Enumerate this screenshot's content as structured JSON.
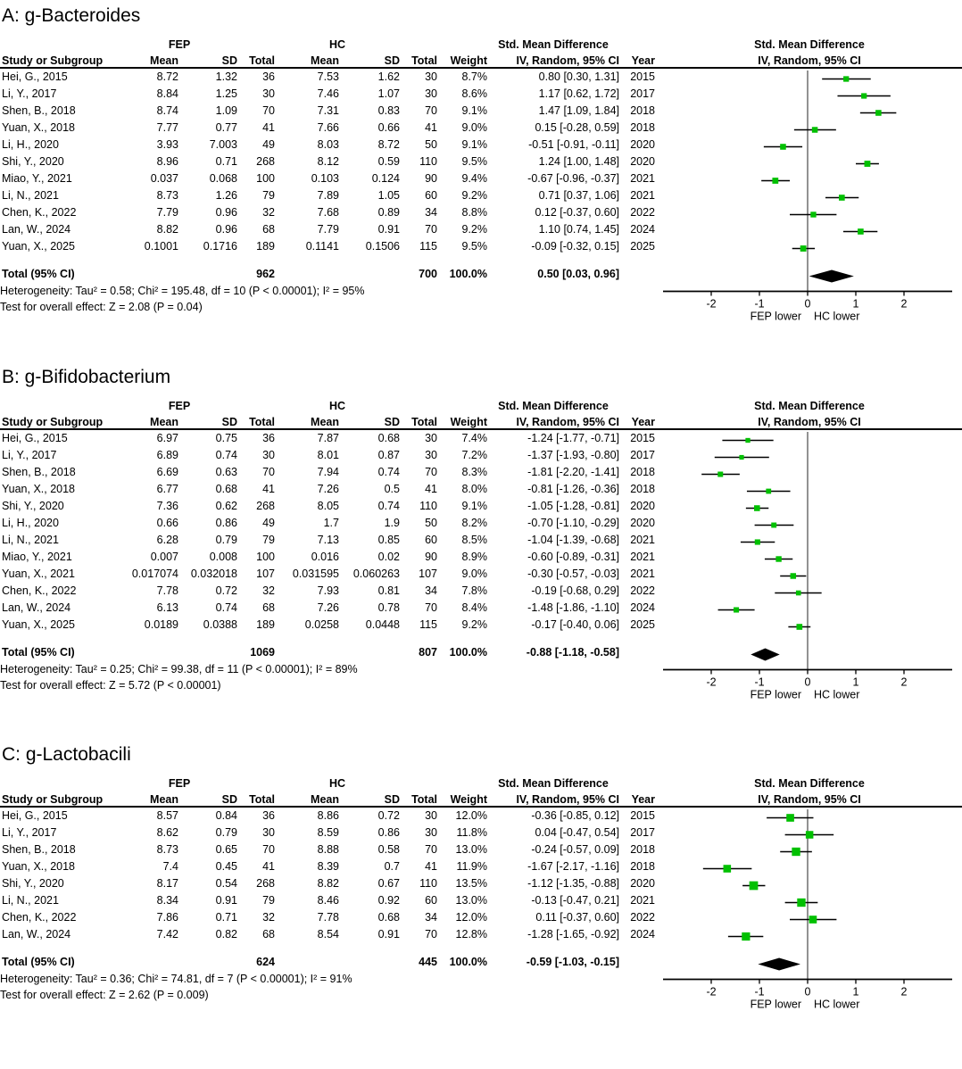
{
  "headers": {
    "fep": "FEP",
    "hc": "HC",
    "smd": "Std. Mean Difference",
    "study": "Study or Subgroup",
    "mean": "Mean",
    "sd": "SD",
    "total": "Total",
    "weight": "Weight",
    "iv_ci": "IV, Random, 95% CI",
    "year": "Year"
  },
  "colors": {
    "marker_green": "#00c000",
    "diamond_black": "#000000",
    "line_black": "#000000",
    "zero_line": "#3a3a3a"
  },
  "panels": [
    {
      "title": "A: g-Bacteroides",
      "rows": [
        [
          "Hei, G., 2015",
          "8.72",
          "1.32",
          "36",
          "7.53",
          "1.62",
          "30",
          "8.7%",
          "0.80 [0.30, 1.31]",
          "2015"
        ],
        [
          "Li, Y., 2017",
          "8.84",
          "1.25",
          "30",
          "7.46",
          "1.07",
          "30",
          "8.6%",
          "1.17 [0.62, 1.72]",
          "2017"
        ],
        [
          "Shen, B., 2018",
          "8.74",
          "1.09",
          "70",
          "7.31",
          "0.83",
          "70",
          "9.1%",
          "1.47 [1.09, 1.84]",
          "2018"
        ],
        [
          "Yuan, X., 2018",
          "7.77",
          "0.77",
          "41",
          "7.66",
          "0.66",
          "41",
          "9.0%",
          "0.15 [-0.28, 0.59]",
          "2018"
        ],
        [
          "Li, H., 2020",
          "3.93",
          "7.003",
          "49",
          "8.03",
          "8.72",
          "50",
          "9.1%",
          "-0.51 [-0.91, -0.11]",
          "2020"
        ],
        [
          "Shi, Y., 2020",
          "8.96",
          "0.71",
          "268",
          "8.12",
          "0.59",
          "110",
          "9.5%",
          "1.24 [1.00, 1.48]",
          "2020"
        ],
        [
          "Miao, Y., 2021",
          "0.037",
          "0.068",
          "100",
          "0.103",
          "0.124",
          "90",
          "9.4%",
          "-0.67 [-0.96, -0.37]",
          "2021"
        ],
        [
          "Li, N., 2021",
          "8.73",
          "1.26",
          "79",
          "7.89",
          "1.05",
          "60",
          "9.2%",
          "0.71 [0.37, 1.06]",
          "2021"
        ],
        [
          "Chen, K., 2022",
          "7.79",
          "0.96",
          "32",
          "7.68",
          "0.89",
          "34",
          "8.8%",
          "0.12 [-0.37, 0.60]",
          "2022"
        ],
        [
          "Lan, W., 2024",
          "8.82",
          "0.96",
          "68",
          "7.79",
          "0.91",
          "70",
          "9.2%",
          "1.10 [0.74, 1.45]",
          "2024"
        ],
        [
          "Yuan, X., 2025",
          "0.1001",
          "0.1716",
          "189",
          "0.1141",
          "0.1506",
          "115",
          "9.5%",
          "-0.09 [-0.32, 0.15]",
          "2025"
        ]
      ],
      "total": {
        "label": "Total (95% CI)",
        "n1": "962",
        "n2": "700",
        "weight": "100.0%",
        "ci": "0.50 [0.03, 0.96]"
      },
      "heterogeneity": "Heterogeneity: Tau² = 0.58; Chi² = 195.48, df = 10 (P < 0.00001); I² = 95%",
      "overall_effect": "Test for overall effect: Z = 2.08 (P = 0.04)"
    },
    {
      "title": "B: g-Bifidobacterium",
      "rows": [
        [
          "Hei, G., 2015",
          "6.97",
          "0.75",
          "36",
          "7.87",
          "0.68",
          "30",
          "7.4%",
          "-1.24 [-1.77, -0.71]",
          "2015"
        ],
        [
          "Li, Y., 2017",
          "6.89",
          "0.74",
          "30",
          "8.01",
          "0.87",
          "30",
          "7.2%",
          "-1.37 [-1.93, -0.80]",
          "2017"
        ],
        [
          "Shen, B., 2018",
          "6.69",
          "0.63",
          "70",
          "7.94",
          "0.74",
          "70",
          "8.3%",
          "-1.81 [-2.20, -1.41]",
          "2018"
        ],
        [
          "Yuan, X., 2018",
          "6.77",
          "0.68",
          "41",
          "7.26",
          "0.5",
          "41",
          "8.0%",
          "-0.81 [-1.26, -0.36]",
          "2018"
        ],
        [
          "Shi, Y., 2020",
          "7.36",
          "0.62",
          "268",
          "8.05",
          "0.74",
          "110",
          "9.1%",
          "-1.05 [-1.28, -0.81]",
          "2020"
        ],
        [
          "Li, H., 2020",
          "0.66",
          "0.86",
          "49",
          "1.7",
          "1.9",
          "50",
          "8.2%",
          "-0.70 [-1.10, -0.29]",
          "2020"
        ],
        [
          "Li, N., 2021",
          "6.28",
          "0.79",
          "79",
          "7.13",
          "0.85",
          "60",
          "8.5%",
          "-1.04 [-1.39, -0.68]",
          "2021"
        ],
        [
          "Miao, Y., 2021",
          "0.007",
          "0.008",
          "100",
          "0.016",
          "0.02",
          "90",
          "8.9%",
          "-0.60 [-0.89, -0.31]",
          "2021"
        ],
        [
          "Yuan, X., 2021",
          "0.017074",
          "0.032018",
          "107",
          "0.031595",
          "0.060263",
          "107",
          "9.0%",
          "-0.30 [-0.57, -0.03]",
          "2021"
        ],
        [
          "Chen, K., 2022",
          "7.78",
          "0.72",
          "32",
          "7.93",
          "0.81",
          "34",
          "7.8%",
          "-0.19 [-0.68, 0.29]",
          "2022"
        ],
        [
          "Lan, W., 2024",
          "6.13",
          "0.74",
          "68",
          "7.26",
          "0.78",
          "70",
          "8.4%",
          "-1.48 [-1.86, -1.10]",
          "2024"
        ],
        [
          "Yuan, X., 2025",
          "0.0189",
          "0.0388",
          "189",
          "0.0258",
          "0.0448",
          "115",
          "9.2%",
          "-0.17 [-0.40, 0.06]",
          "2025"
        ]
      ],
      "total": {
        "label": "Total (95% CI)",
        "n1": "1069",
        "n2": "807",
        "weight": "100.0%",
        "ci": "-0.88 [-1.18, -0.58]"
      },
      "heterogeneity": "Heterogeneity: Tau² = 0.25; Chi² = 99.38, df = 11 (P < 0.00001); I² = 89%",
      "overall_effect": "Test for overall effect: Z = 5.72 (P < 0.00001)"
    },
    {
      "title": "C: g-Lactobacili",
      "rows": [
        [
          "Hei, G., 2015",
          "8.57",
          "0.84",
          "36",
          "8.86",
          "0.72",
          "30",
          "12.0%",
          "-0.36 [-0.85, 0.12]",
          "2015"
        ],
        [
          "Li, Y., 2017",
          "8.62",
          "0.79",
          "30",
          "8.59",
          "0.86",
          "30",
          "11.8%",
          "0.04 [-0.47, 0.54]",
          "2017"
        ],
        [
          "Shen, B., 2018",
          "8.73",
          "0.65",
          "70",
          "8.88",
          "0.58",
          "70",
          "13.0%",
          "-0.24 [-0.57, 0.09]",
          "2018"
        ],
        [
          "Yuan, X., 2018",
          "7.4",
          "0.45",
          "41",
          "8.39",
          "0.7",
          "41",
          "11.9%",
          "-1.67 [-2.17, -1.16]",
          "2018"
        ],
        [
          "Shi, Y., 2020",
          "8.17",
          "0.54",
          "268",
          "8.82",
          "0.67",
          "110",
          "13.5%",
          "-1.12 [-1.35, -0.88]",
          "2020"
        ],
        [
          "Li, N., 2021",
          "8.34",
          "0.91",
          "79",
          "8.46",
          "0.92",
          "60",
          "13.0%",
          "-0.13 [-0.47, 0.21]",
          "2021"
        ],
        [
          "Chen, K., 2022",
          "7.86",
          "0.71",
          "32",
          "7.78",
          "0.68",
          "34",
          "12.0%",
          "0.11 [-0.37, 0.60]",
          "2022"
        ],
        [
          "Lan, W., 2024",
          "7.42",
          "0.82",
          "68",
          "8.54",
          "0.91",
          "70",
          "12.8%",
          "-1.28 [-1.65, -0.92]",
          "2024"
        ]
      ],
      "total": {
        "label": "Total (95% CI)",
        "n1": "624",
        "n2": "445",
        "weight": "100.0%",
        "ci": "-0.59 [-1.03, -0.15]"
      },
      "heterogeneity": "Heterogeneity: Tau² = 0.36; Chi² = 74.81, df = 7 (P < 0.00001); I² = 91%",
      "overall_effect": "Test for overall effect: Z = 2.62 (P = 0.009)"
    }
  ],
  "chart_data": [
    {
      "type": "scatter",
      "variant": "forest-plot",
      "title": "A: g-Bacteroides",
      "effect_header": "Std. Mean Difference",
      "method_header": "IV, Random, 95% CI",
      "axis": {
        "ticks": [
          -2,
          -1,
          0,
          1,
          2
        ],
        "range": [
          -3,
          3
        ],
        "left_label": "FEP lower",
        "right_label": "HC lower"
      },
      "studies": [
        "Hei, G., 2015",
        "Li, Y., 2017",
        "Shen, B., 2018",
        "Yuan, X., 2018",
        "Li, H., 2020",
        "Shi, Y., 2020",
        "Miao, Y., 2021",
        "Li, N., 2021",
        "Chen, K., 2022",
        "Lan, W., 2024",
        "Yuan, X., 2025"
      ],
      "estimates": [
        0.8,
        1.17,
        1.47,
        0.15,
        -0.51,
        1.24,
        -0.67,
        0.71,
        0.12,
        1.1,
        -0.09
      ],
      "ci_low": [
        0.3,
        0.62,
        1.09,
        -0.28,
        -0.91,
        1.0,
        -0.96,
        0.37,
        -0.37,
        0.74,
        -0.32
      ],
      "ci_high": [
        1.31,
        1.72,
        1.84,
        0.59,
        -0.11,
        1.48,
        -0.37,
        1.06,
        0.6,
        1.45,
        0.15
      ],
      "weights_pct": [
        8.7,
        8.6,
        9.1,
        9.0,
        9.1,
        9.5,
        9.4,
        9.2,
        8.8,
        9.2,
        9.5
      ],
      "overall": {
        "estimate": 0.5,
        "ci_low": 0.03,
        "ci_high": 0.96
      }
    },
    {
      "type": "scatter",
      "variant": "forest-plot",
      "title": "B: g-Bifidobacterium",
      "effect_header": "Std. Mean Difference",
      "method_header": "IV, Random, 95% CI",
      "axis": {
        "ticks": [
          -2,
          -1,
          0,
          1,
          2
        ],
        "range": [
          -3,
          3
        ],
        "left_label": "FEP lower",
        "right_label": "HC lower"
      },
      "studies": [
        "Hei, G., 2015",
        "Li, Y., 2017",
        "Shen, B., 2018",
        "Yuan, X., 2018",
        "Shi, Y., 2020",
        "Li, H., 2020",
        "Li, N., 2021",
        "Miao, Y., 2021",
        "Yuan, X., 2021",
        "Chen, K., 2022",
        "Lan, W., 2024",
        "Yuan, X., 2025"
      ],
      "estimates": [
        -1.24,
        -1.37,
        -1.81,
        -0.81,
        -1.05,
        -0.7,
        -1.04,
        -0.6,
        -0.3,
        -0.19,
        -1.48,
        -0.17
      ],
      "ci_low": [
        -1.77,
        -1.93,
        -2.2,
        -1.26,
        -1.28,
        -1.1,
        -1.39,
        -0.89,
        -0.57,
        -0.68,
        -1.86,
        -0.4
      ],
      "ci_high": [
        -0.71,
        -0.8,
        -1.41,
        -0.36,
        -0.81,
        -0.29,
        -0.68,
        -0.31,
        -0.03,
        0.29,
        -1.1,
        0.06
      ],
      "weights_pct": [
        7.4,
        7.2,
        8.3,
        8.0,
        9.1,
        8.2,
        8.5,
        8.9,
        9.0,
        7.8,
        8.4,
        9.2
      ],
      "overall": {
        "estimate": -0.88,
        "ci_low": -1.18,
        "ci_high": -0.58
      }
    },
    {
      "type": "scatter",
      "variant": "forest-plot",
      "title": "C: g-Lactobacili",
      "effect_header": "Std. Mean Difference",
      "method_header": "IV, Random, 95% CI",
      "axis": {
        "ticks": [
          -2,
          -1,
          0,
          1,
          2
        ],
        "range": [
          -3,
          3
        ],
        "left_label": "FEP lower",
        "right_label": "HC lower"
      },
      "studies": [
        "Hei, G., 2015",
        "Li, Y., 2017",
        "Shen, B., 2018",
        "Yuan, X., 2018",
        "Shi, Y., 2020",
        "Li, N., 2021",
        "Chen, K., 2022",
        "Lan, W., 2024"
      ],
      "estimates": [
        -0.36,
        0.04,
        -0.24,
        -1.67,
        -1.12,
        -0.13,
        0.11,
        -1.28
      ],
      "ci_low": [
        -0.85,
        -0.47,
        -0.57,
        -2.17,
        -1.35,
        -0.47,
        -0.37,
        -1.65
      ],
      "ci_high": [
        0.12,
        0.54,
        0.09,
        -1.16,
        -0.88,
        0.21,
        0.6,
        -0.92
      ],
      "weights_pct": [
        12.0,
        11.8,
        13.0,
        11.9,
        13.5,
        13.0,
        12.0,
        12.8
      ],
      "overall": {
        "estimate": -0.59,
        "ci_low": -1.03,
        "ci_high": -0.15
      }
    }
  ]
}
